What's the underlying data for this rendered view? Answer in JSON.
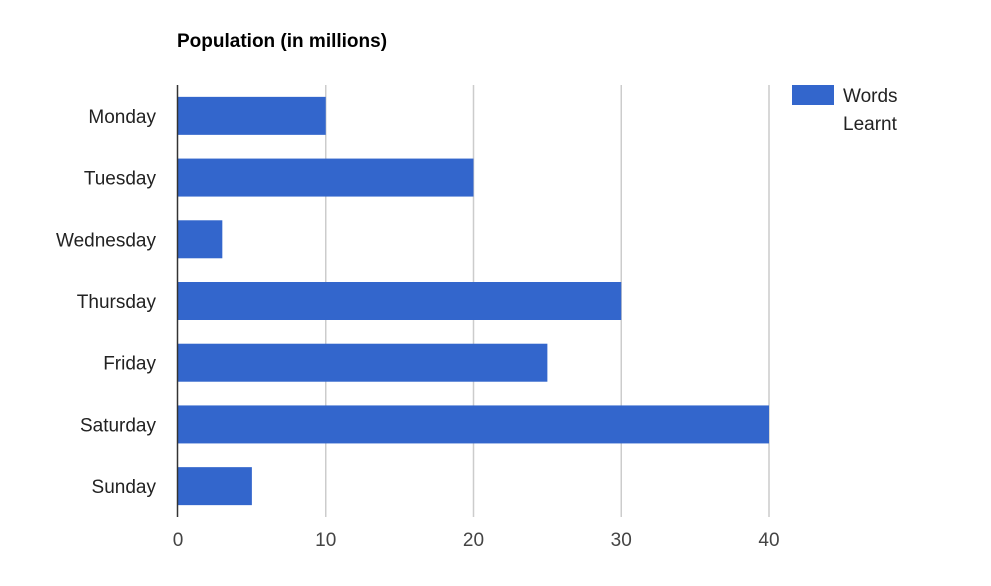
{
  "chart_data": {
    "type": "bar",
    "orientation": "horizontal",
    "title": "Population (in millions)",
    "xlabel": "",
    "ylabel": "",
    "categories": [
      "Monday",
      "Tuesday",
      "Wednesday",
      "Thursday",
      "Friday",
      "Saturday",
      "Sunday"
    ],
    "series": [
      {
        "name_lines": [
          "Words",
          "Learnt"
        ],
        "values": [
          10,
          20,
          3,
          30,
          25,
          40,
          5
        ],
        "color": "#3366cc"
      }
    ],
    "xlim": [
      0,
      40
    ],
    "xticks": [
      "0",
      "10",
      "20",
      "30",
      "40"
    ],
    "grid": true,
    "grid_color": "#cccccc",
    "axis_color": "#333333",
    "legend_position": "top-right"
  }
}
